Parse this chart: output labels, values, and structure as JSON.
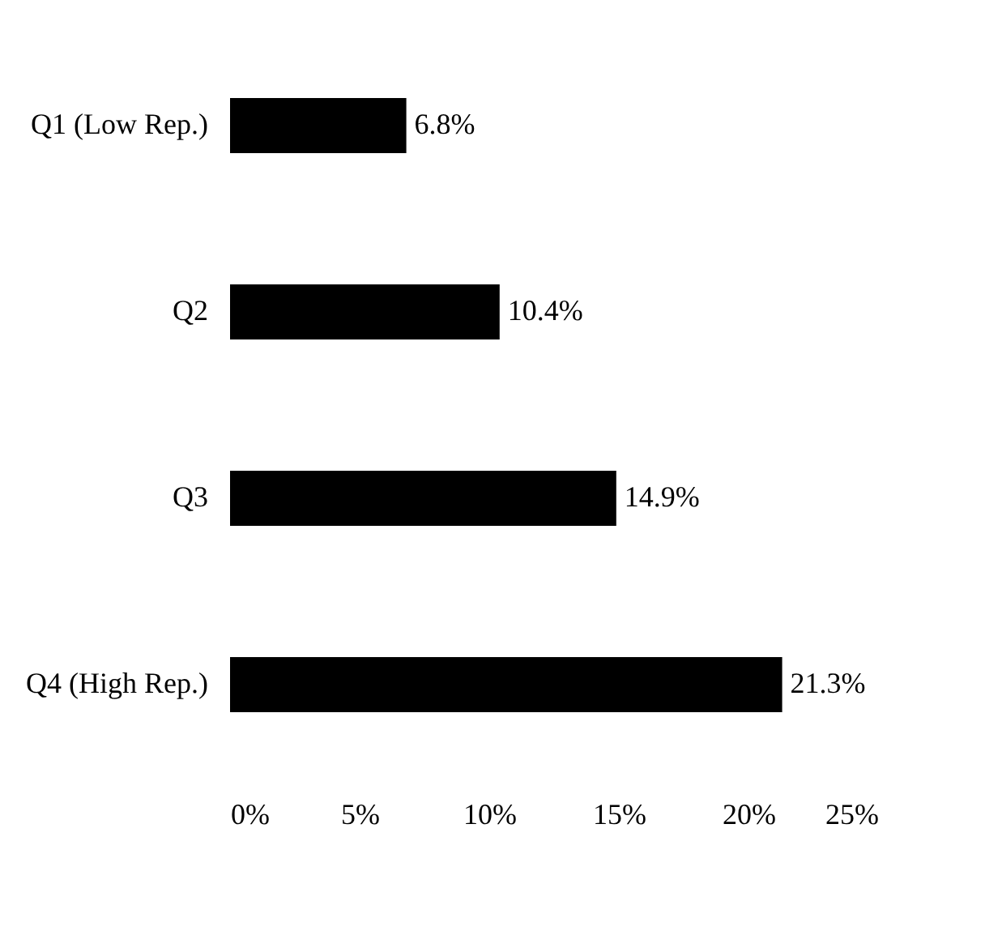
{
  "chart_data": {
    "type": "bar",
    "orientation": "horizontal",
    "categories": [
      "Q1 (Low Rep.)",
      "Q2",
      "Q3",
      "Q4 (High Rep.)"
    ],
    "values": [
      6.8,
      10.4,
      14.9,
      21.3
    ],
    "value_labels": [
      "6.8%",
      "10.4%",
      "14.9%",
      "21.3%"
    ],
    "color": "#000000",
    "xlim": [
      0,
      25
    ],
    "xticks": [
      {
        "value": 0,
        "label": "0%"
      },
      {
        "value": 5,
        "label": "5%"
      },
      {
        "value": 10,
        "label": "10%"
      },
      {
        "value": 15,
        "label": "15%"
      },
      {
        "value": 20,
        "label": "20%"
      },
      {
        "value": 25,
        "label": "25%"
      }
    ],
    "grid": false
  }
}
